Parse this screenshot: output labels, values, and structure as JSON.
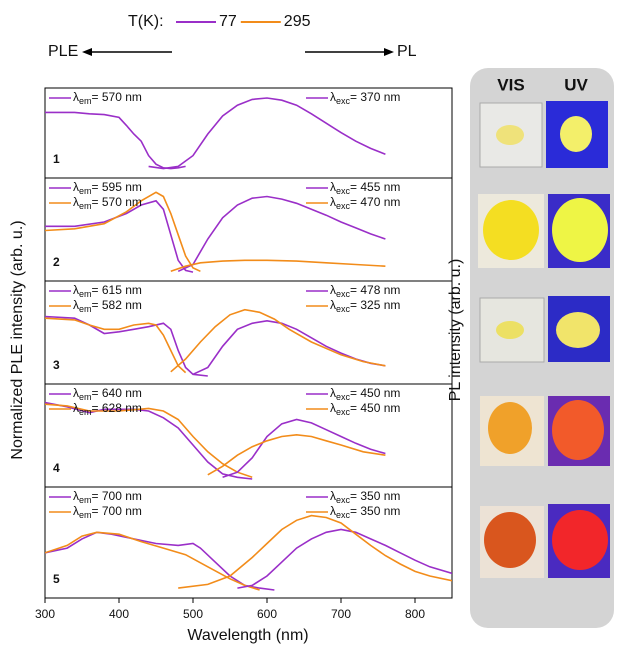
{
  "figure": {
    "legend": {
      "label": "T(K):",
      "entries": [
        {
          "name": "77",
          "color": "#9a2fc8"
        },
        {
          "name": "295",
          "color": "#f28c1a"
        }
      ]
    },
    "ple_arrow": "PLE",
    "pl_arrow": "PL",
    "ylabel": "Normalized PLE intensity (arb. u.)",
    "xlabel": "Wavelength (nm)"
  },
  "photos": {
    "columns": [
      "VIS",
      "UV"
    ],
    "ylabel": "PL intensity (arb. u.)"
  },
  "chart_data": [
    {
      "type": "line",
      "label": "1",
      "xlim": [
        300,
        850
      ],
      "ylim": [
        0,
        1
      ],
      "series": [
        {
          "color": "#9a2fc8",
          "side": "left",
          "annotation": [
            "λ",
            "em",
            "= 570 nm"
          ],
          "x": [
            300,
            320,
            340,
            360,
            380,
            400,
            410,
            420,
            430,
            440,
            450,
            460,
            470,
            480,
            490
          ],
          "values": [
            0.8,
            0.8,
            0.8,
            0.78,
            0.77,
            0.73,
            0.62,
            0.5,
            0.4,
            0.2,
            0.08,
            0.03,
            0.02,
            0.03,
            0.05
          ]
        },
        {
          "color": "#9a2fc8",
          "side": "right",
          "annotation": [
            "λ",
            "exc",
            "= 370 nm"
          ],
          "x": [
            440,
            460,
            480,
            500,
            520,
            540,
            560,
            580,
            600,
            620,
            640,
            660,
            680,
            700,
            720,
            740,
            760
          ],
          "values": [
            0.05,
            0.02,
            0.05,
            0.2,
            0.5,
            0.75,
            0.9,
            0.98,
            1.0,
            0.97,
            0.9,
            0.78,
            0.65,
            0.52,
            0.4,
            0.3,
            0.22
          ]
        }
      ]
    },
    {
      "type": "line",
      "label": "2",
      "xlim": [
        300,
        850
      ],
      "ylim": [
        0,
        1
      ],
      "series": [
        {
          "color": "#9a2fc8",
          "side": "left",
          "annotation": [
            "λ",
            "em",
            "= 595 nm"
          ],
          "x": [
            300,
            340,
            380,
            410,
            430,
            450,
            460,
            470,
            480,
            490,
            500
          ],
          "values": [
            0.55,
            0.55,
            0.6,
            0.7,
            0.8,
            0.85,
            0.75,
            0.45,
            0.15,
            0.03,
            0.01
          ]
        },
        {
          "color": "#f28c1a",
          "side": "left",
          "annotation": [
            "λ",
            "em",
            "= 570 nm"
          ],
          "x": [
            300,
            340,
            380,
            410,
            430,
            450,
            460,
            470,
            480,
            490,
            500,
            510
          ],
          "values": [
            0.5,
            0.52,
            0.58,
            0.72,
            0.85,
            0.95,
            0.9,
            0.7,
            0.45,
            0.2,
            0.06,
            0.02
          ]
        },
        {
          "color": "#9a2fc8",
          "side": "right",
          "annotation": [
            "λ",
            "exc",
            "= 455 nm"
          ],
          "x": [
            480,
            500,
            520,
            540,
            560,
            580,
            600,
            620,
            640,
            660,
            680,
            700,
            720,
            740,
            760
          ],
          "values": [
            0.02,
            0.1,
            0.4,
            0.65,
            0.8,
            0.88,
            0.9,
            0.87,
            0.82,
            0.75,
            0.68,
            0.6,
            0.53,
            0.46,
            0.4
          ]
        },
        {
          "color": "#f28c1a",
          "side": "right",
          "annotation": [
            "λ",
            "exc",
            "= 470 nm"
          ],
          "x": [
            470,
            490,
            510,
            540,
            570,
            600,
            640,
            680,
            720,
            760
          ],
          "values": [
            0.02,
            0.08,
            0.12,
            0.14,
            0.15,
            0.15,
            0.14,
            0.12,
            0.1,
            0.08
          ]
        }
      ]
    },
    {
      "type": "line",
      "label": "3",
      "xlim": [
        300,
        850
      ],
      "ylim": [
        0,
        1
      ],
      "series": [
        {
          "color": "#9a2fc8",
          "side": "left",
          "annotation": [
            "λ",
            "em",
            "= 615 nm"
          ],
          "x": [
            300,
            340,
            360,
            380,
            400,
            420,
            440,
            460,
            470,
            480,
            490,
            500,
            520
          ],
          "values": [
            0.7,
            0.68,
            0.6,
            0.5,
            0.52,
            0.55,
            0.58,
            0.62,
            0.55,
            0.3,
            0.1,
            0.02,
            0.0
          ]
        },
        {
          "color": "#f28c1a",
          "side": "left",
          "annotation": [
            "λ",
            "em",
            "= 582 nm"
          ],
          "x": [
            300,
            340,
            360,
            380,
            400,
            420,
            440,
            450,
            460,
            470,
            480,
            490
          ],
          "values": [
            0.68,
            0.66,
            0.6,
            0.55,
            0.55,
            0.6,
            0.62,
            0.6,
            0.48,
            0.3,
            0.12,
            0.04
          ]
        },
        {
          "color": "#9a2fc8",
          "side": "right",
          "annotation": [
            "λ",
            "exc",
            "= 478 nm"
          ],
          "x": [
            500,
            520,
            540,
            560,
            580,
            600,
            620,
            640,
            660,
            680,
            700,
            720,
            740,
            760
          ],
          "values": [
            0.02,
            0.1,
            0.35,
            0.55,
            0.62,
            0.65,
            0.62,
            0.55,
            0.45,
            0.35,
            0.27,
            0.2,
            0.15,
            0.12
          ]
        },
        {
          "color": "#f28c1a",
          "side": "right",
          "annotation": [
            "λ",
            "exc",
            "= 325 nm"
          ],
          "x": [
            470,
            490,
            510,
            530,
            550,
            570,
            590,
            610,
            630,
            660,
            700,
            730,
            760
          ],
          "values": [
            0.05,
            0.2,
            0.4,
            0.58,
            0.72,
            0.78,
            0.75,
            0.67,
            0.55,
            0.4,
            0.25,
            0.17,
            0.12
          ]
        }
      ]
    },
    {
      "type": "line",
      "label": "4",
      "xlim": [
        300,
        850
      ],
      "ylim": [
        0,
        1
      ],
      "series": [
        {
          "color": "#9a2fc8",
          "side": "left",
          "annotation": [
            "λ",
            "em",
            "= 640 nm"
          ],
          "x": [
            300,
            330,
            360,
            380,
            420,
            440,
            460,
            480,
            500,
            520,
            540,
            560,
            580
          ],
          "values": [
            0.9,
            0.85,
            0.78,
            0.82,
            0.82,
            0.8,
            0.72,
            0.6,
            0.4,
            0.2,
            0.06,
            0.02,
            0.0
          ]
        },
        {
          "color": "#f28c1a",
          "side": "left",
          "annotation": [
            "λ",
            "em",
            "= 628 nm"
          ],
          "x": [
            300,
            330,
            360,
            400,
            440,
            460,
            480,
            500,
            520,
            540,
            560,
            580
          ],
          "values": [
            0.88,
            0.86,
            0.8,
            0.8,
            0.83,
            0.8,
            0.7,
            0.5,
            0.32,
            0.18,
            0.08,
            0.02
          ]
        },
        {
          "color": "#9a2fc8",
          "side": "right",
          "annotation": [
            "λ",
            "exc",
            "= 450 nm"
          ],
          "x": [
            540,
            560,
            580,
            600,
            620,
            640,
            660,
            680,
            700,
            720,
            740,
            760
          ],
          "values": [
            0.02,
            0.08,
            0.25,
            0.5,
            0.65,
            0.7,
            0.66,
            0.58,
            0.5,
            0.42,
            0.35,
            0.3
          ]
        },
        {
          "color": "#f28c1a",
          "side": "right",
          "annotation": [
            "λ",
            "exc",
            "= 450 nm"
          ],
          "x": [
            520,
            540,
            560,
            580,
            600,
            620,
            640,
            660,
            680,
            700,
            730,
            760
          ],
          "values": [
            0.05,
            0.15,
            0.28,
            0.38,
            0.45,
            0.5,
            0.52,
            0.5,
            0.45,
            0.4,
            0.32,
            0.28
          ]
        }
      ]
    },
    {
      "type": "line",
      "label": "5",
      "xlim": [
        300,
        850
      ],
      "ylim": [
        0,
        1
      ],
      "xticks": [
        300,
        400,
        500,
        600,
        700,
        800
      ],
      "series": [
        {
          "color": "#9a2fc8",
          "side": "left",
          "annotation": [
            "λ",
            "em",
            "= 700 nm"
          ],
          "x": [
            300,
            330,
            350,
            370,
            390,
            420,
            450,
            480,
            500,
            510,
            530,
            550,
            570,
            590,
            610
          ],
          "values": [
            0.4,
            0.45,
            0.55,
            0.62,
            0.6,
            0.55,
            0.5,
            0.48,
            0.5,
            0.45,
            0.3,
            0.15,
            0.05,
            0.02,
            0.0
          ]
        },
        {
          "color": "#f28c1a",
          "side": "left",
          "annotation": [
            "λ",
            "em",
            "= 700 nm"
          ],
          "x": [
            300,
            330,
            350,
            370,
            400,
            430,
            460,
            490,
            520,
            550,
            570,
            590
          ],
          "values": [
            0.4,
            0.48,
            0.58,
            0.62,
            0.6,
            0.52,
            0.45,
            0.38,
            0.25,
            0.12,
            0.05,
            0.0
          ]
        },
        {
          "color": "#9a2fc8",
          "side": "right",
          "annotation": [
            "λ",
            "exc",
            "= 350 nm"
          ],
          "x": [
            560,
            580,
            600,
            620,
            640,
            660,
            680,
            700,
            720,
            740,
            760,
            780,
            800,
            820,
            850
          ],
          "values": [
            0.02,
            0.05,
            0.15,
            0.3,
            0.45,
            0.55,
            0.62,
            0.65,
            0.62,
            0.55,
            0.48,
            0.4,
            0.32,
            0.25,
            0.18
          ]
        },
        {
          "color": "#f28c1a",
          "side": "right",
          "annotation": [
            "λ",
            "exc",
            "= 350 nm"
          ],
          "x": [
            480,
            520,
            550,
            580,
            600,
            620,
            640,
            660,
            680,
            700,
            720,
            740,
            760,
            780,
            800,
            820,
            850
          ],
          "values": [
            0.02,
            0.06,
            0.15,
            0.35,
            0.5,
            0.65,
            0.75,
            0.8,
            0.78,
            0.72,
            0.6,
            0.48,
            0.37,
            0.28,
            0.2,
            0.15,
            0.1
          ]
        }
      ]
    }
  ]
}
